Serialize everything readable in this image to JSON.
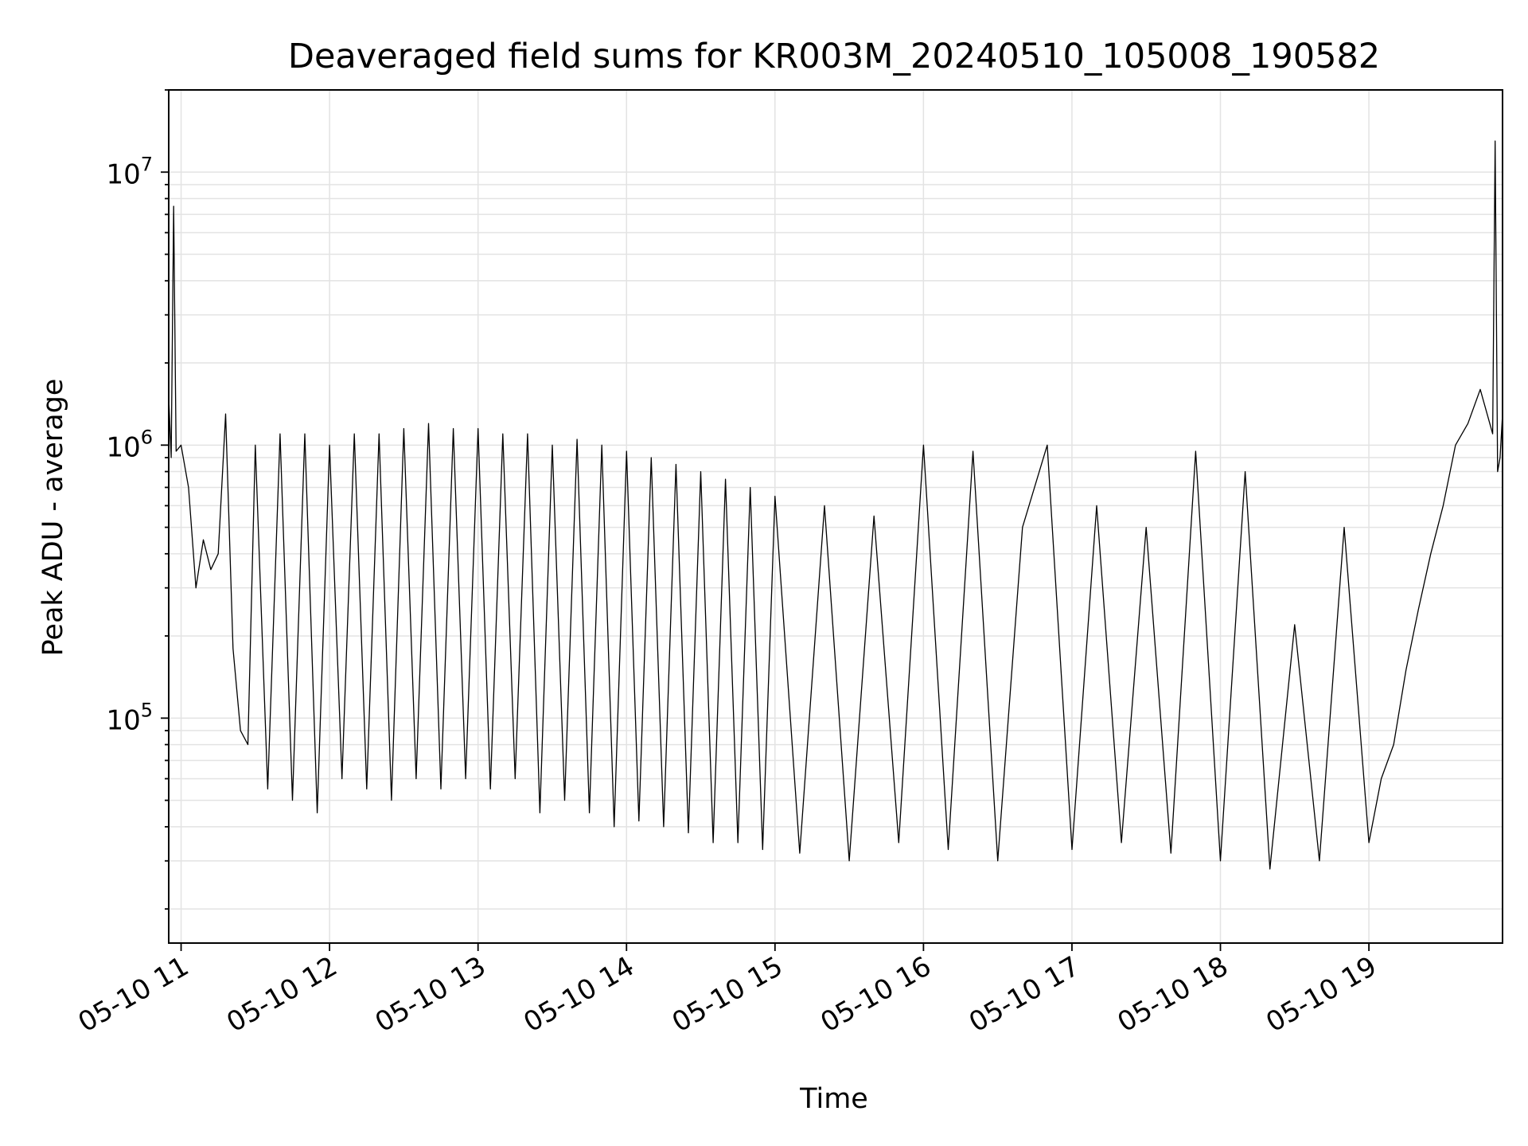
{
  "chart_data": {
    "type": "line",
    "title": "Deaveraged field sums for KR003M_20240510_105008_190582",
    "xlabel": "Time",
    "ylabel": "Peak ADU - average",
    "xscale": "time",
    "yscale": "log",
    "xlim": [
      "2024-05-10 10:55:00",
      "2024-05-10 19:54:00"
    ],
    "ylim": [
      15000,
      20000000
    ],
    "grid": true,
    "line_color": "#000000",
    "x_ticks": [
      "2024-05-10 11:00",
      "2024-05-10 12:00",
      "2024-05-10 13:00",
      "2024-05-10 14:00",
      "2024-05-10 15:00",
      "2024-05-10 16:00",
      "2024-05-10 17:00",
      "2024-05-10 18:00",
      "2024-05-10 19:00"
    ],
    "x_tick_labels": [
      "05-10 11",
      "05-10 12",
      "05-10 13",
      "05-10 14",
      "05-10 15",
      "05-10 16",
      "05-10 17",
      "05-10 18",
      "05-10 19"
    ],
    "y_major_ticks": [
      100000,
      1000000,
      10000000
    ],
    "y_tick_labels": [
      {
        "base": "10",
        "exp": "5"
      },
      {
        "base": "10",
        "exp": "6"
      },
      {
        "base": "10",
        "exp": "7"
      }
    ],
    "series": [
      {
        "x": [
          "2024-05-10 10:55",
          "2024-05-10 10:56",
          "2024-05-10 10:57",
          "2024-05-10 10:58",
          "2024-05-10 11:00",
          "2024-05-10 11:03",
          "2024-05-10 11:06",
          "2024-05-10 11:09",
          "2024-05-10 11:12",
          "2024-05-10 11:15",
          "2024-05-10 11:18",
          "2024-05-10 11:21",
          "2024-05-10 11:24",
          "2024-05-10 11:27",
          "2024-05-10 11:30",
          "2024-05-10 11:35",
          "2024-05-10 11:40",
          "2024-05-10 11:45",
          "2024-05-10 11:50",
          "2024-05-10 11:55",
          "2024-05-10 12:00",
          "2024-05-10 12:05",
          "2024-05-10 12:10",
          "2024-05-10 12:15",
          "2024-05-10 12:20",
          "2024-05-10 12:25",
          "2024-05-10 12:30",
          "2024-05-10 12:35",
          "2024-05-10 12:40",
          "2024-05-10 12:45",
          "2024-05-10 12:50",
          "2024-05-10 12:55",
          "2024-05-10 13:00",
          "2024-05-10 13:05",
          "2024-05-10 13:10",
          "2024-05-10 13:15",
          "2024-05-10 13:20",
          "2024-05-10 13:25",
          "2024-05-10 13:30",
          "2024-05-10 13:35",
          "2024-05-10 13:40",
          "2024-05-10 13:45",
          "2024-05-10 13:50",
          "2024-05-10 13:55",
          "2024-05-10 14:00",
          "2024-05-10 14:05",
          "2024-05-10 14:10",
          "2024-05-10 14:15",
          "2024-05-10 14:20",
          "2024-05-10 14:25",
          "2024-05-10 14:30",
          "2024-05-10 14:35",
          "2024-05-10 14:40",
          "2024-05-10 14:45",
          "2024-05-10 14:50",
          "2024-05-10 14:55",
          "2024-05-10 15:00",
          "2024-05-10 15:10",
          "2024-05-10 15:20",
          "2024-05-10 15:30",
          "2024-05-10 15:40",
          "2024-05-10 15:50",
          "2024-05-10 16:00",
          "2024-05-10 16:10",
          "2024-05-10 16:20",
          "2024-05-10 16:30",
          "2024-05-10 16:40",
          "2024-05-10 16:50",
          "2024-05-10 17:00",
          "2024-05-10 17:10",
          "2024-05-10 17:20",
          "2024-05-10 17:30",
          "2024-05-10 17:40",
          "2024-05-10 17:50",
          "2024-05-10 18:00",
          "2024-05-10 18:10",
          "2024-05-10 18:20",
          "2024-05-10 18:30",
          "2024-05-10 18:40",
          "2024-05-10 18:50",
          "2024-05-10 19:00",
          "2024-05-10 19:05",
          "2024-05-10 19:10",
          "2024-05-10 19:15",
          "2024-05-10 19:20",
          "2024-05-10 19:25",
          "2024-05-10 19:30",
          "2024-05-10 19:35",
          "2024-05-10 19:40",
          "2024-05-10 19:45",
          "2024-05-10 19:50",
          "2024-05-10 19:51",
          "2024-05-10 19:52",
          "2024-05-10 19:53",
          "2024-05-10 19:54"
        ],
        "y": [
          1500000,
          900000,
          7500000,
          950000,
          1000000,
          700000,
          300000,
          450000,
          350000,
          400000,
          1300000,
          180000,
          90000,
          80000,
          1000000,
          55000,
          1100000,
          50000,
          1100000,
          45000,
          1000000,
          60000,
          1100000,
          55000,
          1100000,
          50000,
          1150000,
          60000,
          1200000,
          55000,
          1150000,
          60000,
          1150000,
          55000,
          1100000,
          60000,
          1100000,
          45000,
          1000000,
          50000,
          1050000,
          45000,
          1000000,
          40000,
          950000,
          42000,
          900000,
          40000,
          850000,
          38000,
          800000,
          35000,
          750000,
          35000,
          700000,
          33000,
          650000,
          32000,
          600000,
          30000,
          550000,
          35000,
          1000000,
          33000,
          950000,
          30000,
          500000,
          1000000,
          33000,
          600000,
          35000,
          500000,
          32000,
          950000,
          30000,
          800000,
          28000,
          220000,
          30000,
          500000,
          35000,
          60000,
          80000,
          150000,
          250000,
          400000,
          600000,
          1000000,
          1200000,
          1600000,
          1100000,
          13000000,
          800000,
          900000,
          1300000
        ]
      }
    ]
  }
}
